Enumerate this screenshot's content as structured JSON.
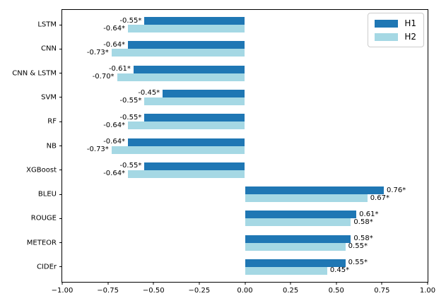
{
  "figure": {
    "background": "#ffffff"
  },
  "chart_data": {
    "type": "bar",
    "orientation": "horizontal",
    "title": "",
    "xlabel": "",
    "ylabel": "",
    "grid": false,
    "xlim": [
      -1.0,
      1.0
    ],
    "xticks": {
      "values": [
        -1.0,
        -0.75,
        -0.5,
        -0.25,
        0.0,
        0.25,
        0.5,
        0.75,
        1.0
      ],
      "labels": [
        "−1.00",
        "−0.75",
        "−0.50",
        "−0.25",
        "0.00",
        "0.25",
        "0.50",
        "0.75",
        "1.00"
      ]
    },
    "categories": [
      "LSTM",
      "CNN",
      "CNN & LSTM",
      "SVM",
      "RF",
      "NB",
      "XGBoost",
      "BLEU",
      "ROUGE",
      "METEOR",
      "CIDEr"
    ],
    "series": [
      {
        "name": "H1",
        "color": "#1f77b4",
        "values": [
          -0.55,
          -0.64,
          -0.61,
          -0.45,
          -0.55,
          -0.64,
          -0.55,
          0.76,
          0.61,
          0.58,
          0.55
        ],
        "data_labels": [
          "-0.55*",
          "-0.64*",
          "-0.61*",
          "-0.45*",
          "-0.55*",
          "-0.64*",
          "-0.55*",
          "0.76*",
          "0.61*",
          "0.58*",
          "0.55*"
        ]
      },
      {
        "name": "H2",
        "color": "#a5d8e4",
        "values": [
          -0.64,
          -0.73,
          -0.7,
          -0.55,
          -0.64,
          -0.73,
          -0.64,
          0.67,
          0.58,
          0.55,
          0.45
        ],
        "data_labels": [
          "-0.64*",
          "-0.73*",
          "-0.70*",
          "-0.55*",
          "-0.64*",
          "-0.73*",
          "-0.64*",
          "0.67*",
          "0.58*",
          "0.55*",
          "0.45*"
        ]
      }
    ],
    "legend": {
      "position": "upper-right"
    }
  }
}
